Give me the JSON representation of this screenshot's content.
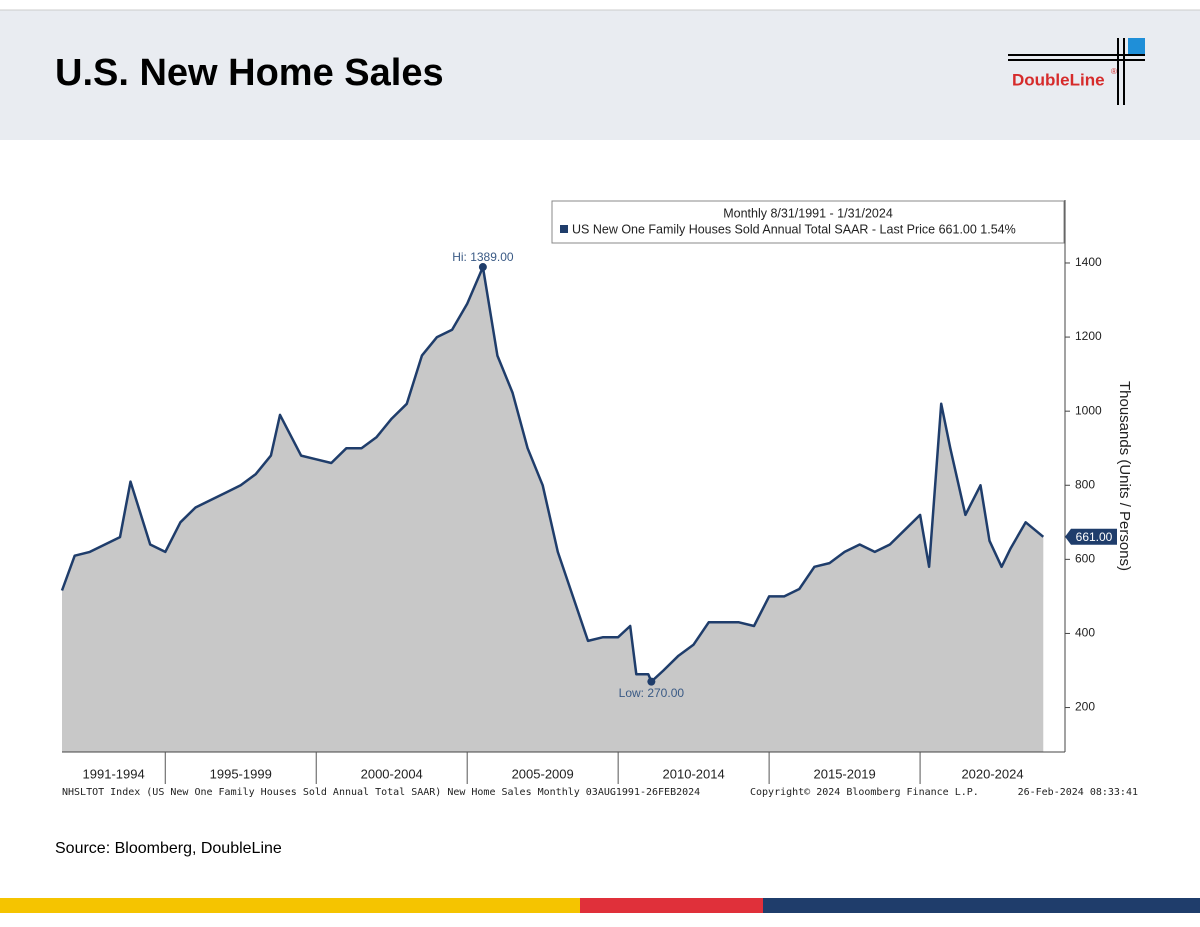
{
  "header": {
    "title": "U.S. New Home Sales",
    "logo": "DoubleLine",
    "logo_mark": "®"
  },
  "source": "Source: Bloomberg, DoubleLine",
  "chart_data": {
    "type": "area",
    "legend_title": "Monthly 8/31/1991 - 1/31/2024",
    "series": [
      {
        "name": "US New One Family Houses Sold Annual Total SAAR - Last Price 661.00  1.54%",
        "color": "#1f3d6b",
        "fill": "#c8c8c8",
        "x": [
          1991.58,
          1992.0,
          1992.5,
          1993.0,
          1993.5,
          1993.85,
          1994.5,
          1995.0,
          1995.5,
          1996.0,
          1996.5,
          1997.0,
          1997.5,
          1998.0,
          1998.5,
          1998.8,
          1999.5,
          2000.0,
          2000.5,
          2001.0,
          2001.5,
          2002.0,
          2002.5,
          2003.0,
          2003.5,
          2004.0,
          2004.5,
          2005.0,
          2005.52,
          2006.0,
          2006.5,
          2007.0,
          2007.5,
          2008.0,
          2008.5,
          2009.0,
          2009.5,
          2010.0,
          2010.4,
          2010.6,
          2011.0,
          2011.1,
          2011.5,
          2012.0,
          2012.5,
          2013.0,
          2013.5,
          2014.0,
          2014.5,
          2015.0,
          2015.5,
          2016.0,
          2016.5,
          2017.0,
          2017.5,
          2018.0,
          2018.5,
          2019.0,
          2019.5,
          2020.0,
          2020.3,
          2020.7,
          2021.0,
          2021.5,
          2022.0,
          2022.3,
          2022.7,
          2023.0,
          2023.5,
          2024.08
        ],
        "values": [
          516,
          610,
          620,
          640,
          660,
          810,
          640,
          620,
          700,
          740,
          760,
          780,
          800,
          830,
          880,
          990,
          880,
          870,
          860,
          900,
          900,
          930,
          980,
          1020,
          1150,
          1200,
          1220,
          1290,
          1389,
          1150,
          1050,
          900,
          800,
          620,
          500,
          380,
          390,
          390,
          420,
          290,
          290,
          270,
          300,
          340,
          370,
          430,
          430,
          430,
          420,
          500,
          500,
          520,
          580,
          590,
          620,
          640,
          620,
          640,
          680,
          720,
          580,
          1020,
          900,
          720,
          800,
          650,
          580,
          630,
          700,
          661
        ]
      }
    ],
    "xlim": [
      1991.58,
      2024.8
    ],
    "ylim": [
      80,
      1570
    ],
    "yticks": [
      200,
      400,
      600,
      800,
      1000,
      1200,
      1400
    ],
    "ylabel": "Thousands (Units / Persons)",
    "periods": [
      {
        "label": "1991-1994",
        "start": 1991.58,
        "end": 1995
      },
      {
        "label": "1995-1999",
        "start": 1995,
        "end": 2000
      },
      {
        "label": "2000-2004",
        "start": 2000,
        "end": 2005
      },
      {
        "label": "2005-2009",
        "start": 2005,
        "end": 2010
      },
      {
        "label": "2010-2014",
        "start": 2010,
        "end": 2015
      },
      {
        "label": "2015-2019",
        "start": 2015,
        "end": 2020
      },
      {
        "label": "2020-2024",
        "start": 2020,
        "end": 2024.8
      }
    ],
    "annotations": [
      {
        "text": "Hi: 1389.00",
        "index": 28
      },
      {
        "text": "Low: 270.00",
        "index": 41
      }
    ],
    "last_tag": {
      "value": 661,
      "label": "661.00"
    },
    "footer_left": "NHSLTOT Index (US New One Family Houses Sold Annual Total SAAR) New Home Sales  Monthly 03AUG1991-26FEB2024",
    "footer_mid": "Copyright© 2024 Bloomberg Finance L.P.",
    "footer_right": "26-Feb-2024 08:33:41"
  }
}
